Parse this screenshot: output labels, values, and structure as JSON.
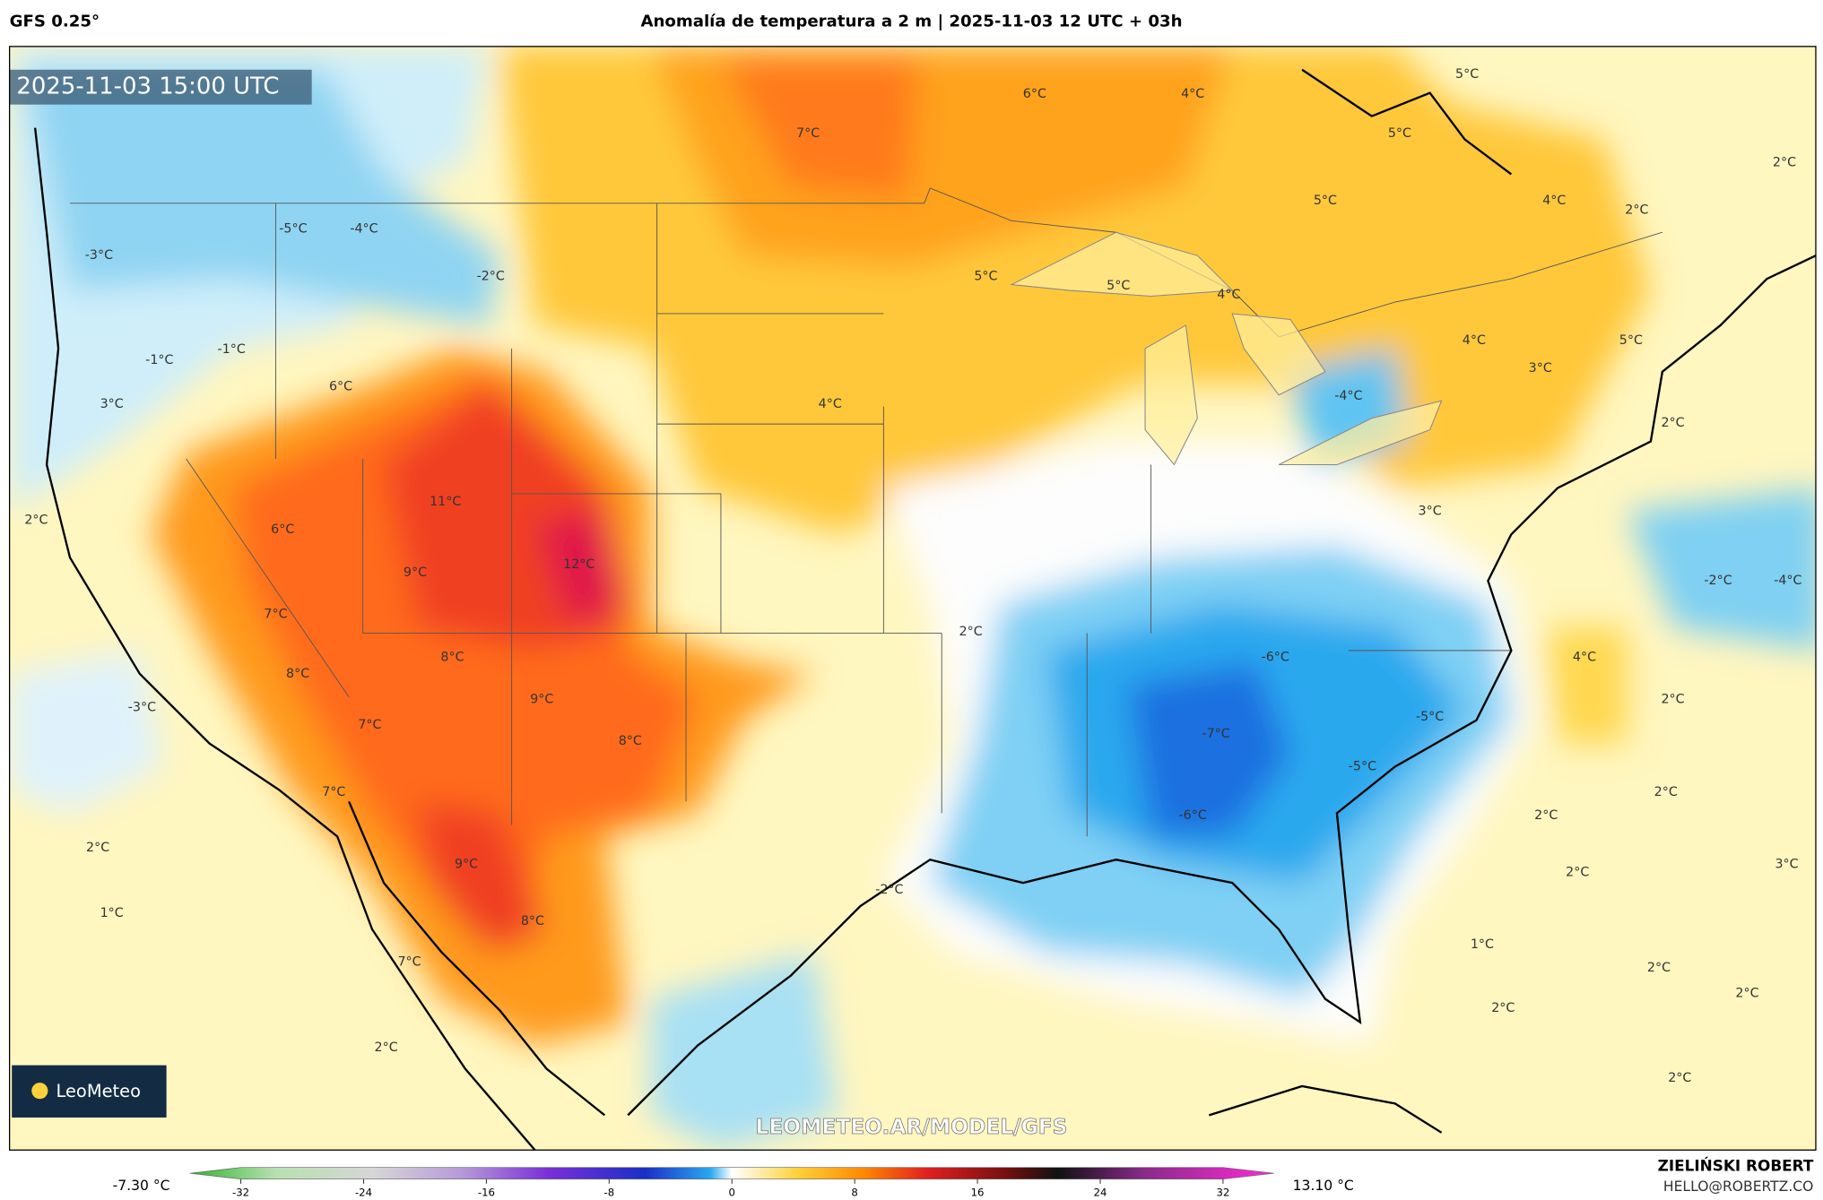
{
  "header": {
    "model": "GFS 0.25°",
    "title": "Anomalía de temperatura a 2 m | 2025-11-03 12 UTC + 03h"
  },
  "map": {
    "timestamp": "2025-11-03 15:00 UTC",
    "logo": "LeoMeteo",
    "watermark": "LEOMETEO.AR/MODEL/GFS",
    "labels": [
      "6°C",
      "4°C",
      "5°C",
      "5°C",
      "7°C",
      "2°C",
      "4°C",
      "5°C",
      "2°C",
      "-5°C",
      "-4°C",
      "-2°C",
      "-3°C",
      "5°C",
      "5°C",
      "4°C",
      "-1°C",
      "-1°C",
      "4°C",
      "5°C",
      "3°C",
      "6°C",
      "3°C",
      "4°C",
      "-4°C",
      "2°C",
      "11°C",
      "2°C",
      "3°C",
      "6°C",
      "12°C",
      "9°C",
      "-2°C",
      "-4°C",
      "7°C",
      "2°C",
      "-6°C",
      "4°C",
      "8°C",
      "8°C",
      "-3°C",
      "9°C",
      "2°C",
      "-5°C",
      "7°C",
      "-7°C",
      "8°C",
      "-5°C",
      "7°C",
      "2°C",
      "2°C",
      "-6°C",
      "2°C",
      "9°C",
      "3°C",
      "2°C",
      "-2°C",
      "1°C",
      "8°C",
      "1°C",
      "7°C",
      "2°C",
      "2°C",
      "2°C",
      "2°C",
      "2°C"
    ]
  },
  "colorbar": {
    "min_label": "-7.30 °C",
    "max_label": "13.10 °C",
    "ticks": [
      -32,
      -24,
      -16,
      -8,
      0,
      8,
      16,
      24,
      32
    ]
  },
  "footer": {
    "author": "ZIELIŃSKI ROBERT",
    "email": "HELLO@ROBERTZ.CO"
  }
}
